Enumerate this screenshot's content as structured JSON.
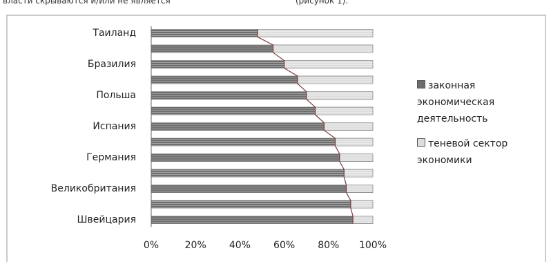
{
  "header": {
    "left": "власти скрываются и/или не является",
    "right": "(рисунок 1)."
  },
  "chart_data": {
    "type": "stacked-bar-horizontal",
    "categories": [
      "Таиланд",
      null,
      "Бразилия",
      null,
      "Польша",
      null,
      "Испания",
      null,
      "Германия",
      null,
      "Великобритания",
      null,
      "Швейцария"
    ],
    "series": [
      {
        "name": "законная экономическая деятельность",
        "color": "#6e6e6e",
        "values": [
          48,
          55,
          60,
          66,
          70,
          74,
          78,
          83,
          85,
          87,
          88,
          90,
          91
        ]
      },
      {
        "name": "теневой сектор экономики",
        "color": "#dedede",
        "values": [
          52,
          45,
          40,
          34,
          30,
          26,
          22,
          17,
          15,
          13,
          12,
          10,
          9
        ]
      }
    ],
    "xlim": [
      0,
      100
    ],
    "xticks": [
      {
        "value": 0,
        "label": "0%"
      },
      {
        "value": 20,
        "label": "20%"
      },
      {
        "value": 40,
        "label": "40%"
      },
      {
        "value": 60,
        "label": "60%"
      },
      {
        "value": 80,
        "label": "80%"
      },
      {
        "value": 100,
        "label": "100%"
      }
    ],
    "series_lines": true,
    "legend": "right"
  }
}
